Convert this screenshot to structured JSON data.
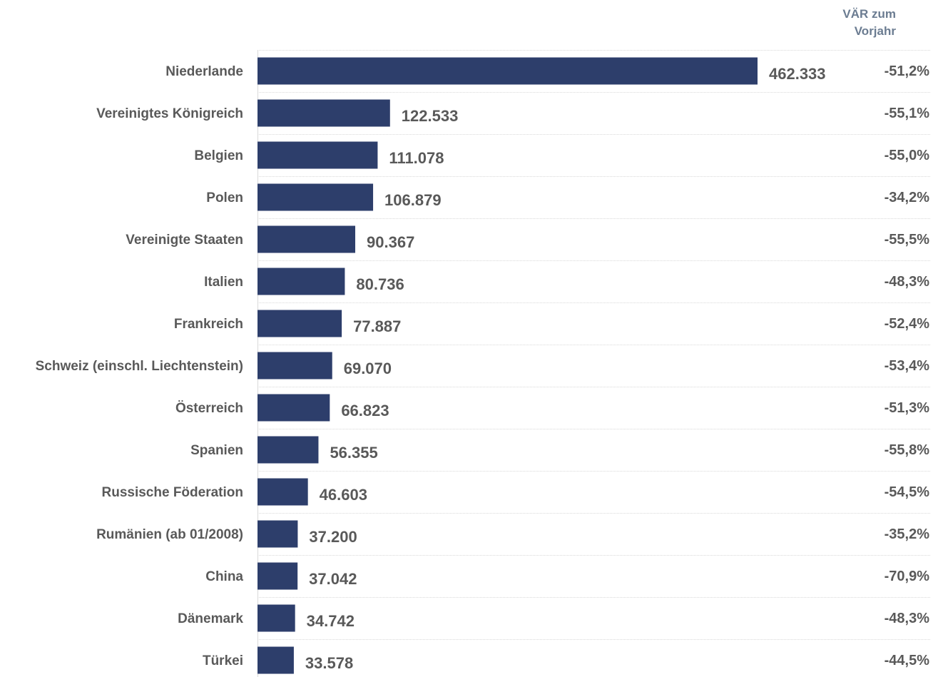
{
  "chart_data": {
    "type": "bar",
    "orientation": "horizontal",
    "categories": [
      "Niederlande",
      "Vereinigtes Königreich",
      "Belgien",
      "Polen",
      "Vereinigte Staaten",
      "Italien",
      "Frankreich",
      "Schweiz (einschl. Liechtenstein)",
      "Österreich",
      "Spanien",
      "Russische Föderation",
      "Rumänien (ab 01/2008)",
      "China",
      "Dänemark",
      "Türkei"
    ],
    "values": [
      462333,
      122533,
      111078,
      106879,
      90367,
      80736,
      77887,
      69070,
      66823,
      56355,
      46603,
      37200,
      37042,
      34742,
      33578
    ],
    "value_labels": [
      "462.333",
      "122.533",
      "111.078",
      "106.879",
      "90.367",
      "80.736",
      "77.887",
      "69.070",
      "66.823",
      "56.355",
      "46.603",
      "37.200",
      "37.042",
      "34.742",
      "33.578"
    ],
    "change_header": [
      "VÄR zum",
      "Vorjahr"
    ],
    "change_labels": [
      "-51,2%",
      "-55,1%",
      "-55,0%",
      "-34,2%",
      "-55,5%",
      "-48,3%",
      "-52,4%",
      "-53,4%",
      "-51,3%",
      "-55,8%",
      "-54,5%",
      "-35,2%",
      "-70,9%",
      "-48,3%",
      "-44,5%"
    ],
    "change_values": [
      -51.2,
      -55.1,
      -55.0,
      -34.2,
      -55.5,
      -48.3,
      -52.4,
      -53.4,
      -51.3,
      -55.8,
      -54.5,
      -35.2,
      -70.9,
      -48.3,
      -44.5
    ],
    "xlim": [
      0,
      462333
    ],
    "title": "",
    "xlabel": "",
    "ylabel": "",
    "grid": true,
    "legend": "none",
    "colors": {
      "bar": "#2d3e6b",
      "label": "#595959",
      "header": "#6b7c91",
      "grid": "#d9d9d9"
    }
  }
}
